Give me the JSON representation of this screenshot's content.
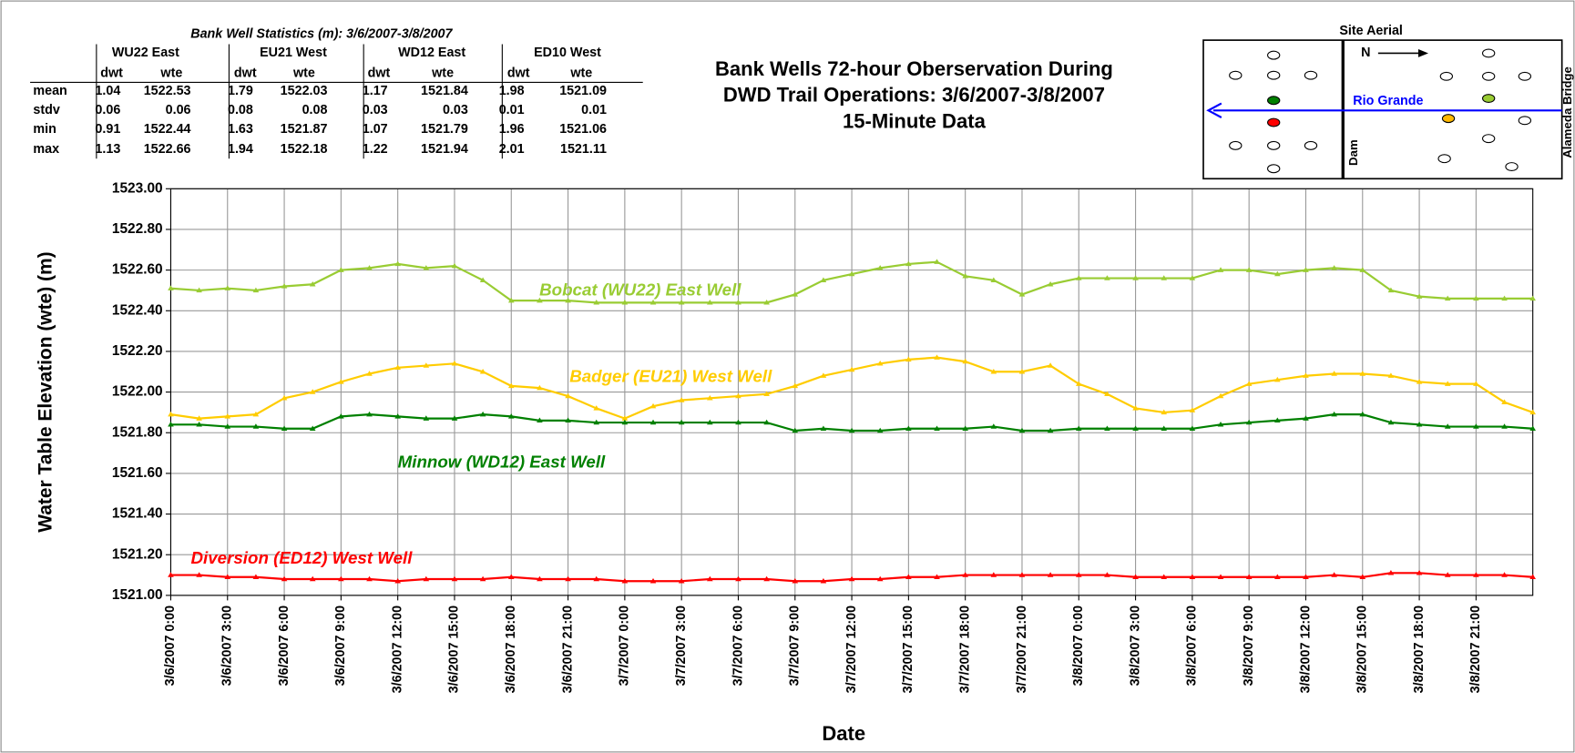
{
  "stats_table": {
    "title": "Bank Well Statistics (m): 3/6/2007-3/8/2007",
    "groups": [
      "WU22 East",
      "EU21 West",
      "WD12 East",
      "ED10 West"
    ],
    "subheaders": [
      "dwt",
      "wte"
    ],
    "rows": [
      {
        "label": "mean",
        "values": [
          1.04,
          1522.53,
          1.79,
          1522.03,
          1.17,
          1521.84,
          1.98,
          1521.09
        ]
      },
      {
        "label": "stdv",
        "values": [
          0.06,
          0.06,
          0.08,
          0.08,
          0.03,
          0.03,
          0.01,
          0.01
        ]
      },
      {
        "label": "min",
        "values": [
          0.91,
          1522.44,
          1.63,
          1521.87,
          1.07,
          1521.79,
          1.96,
          1521.06
        ]
      },
      {
        "label": "max",
        "values": [
          1.13,
          1522.66,
          1.94,
          1522.18,
          1.22,
          1521.94,
          2.01,
          1521.11
        ]
      }
    ]
  },
  "site_aerial": {
    "title": "Site Aerial",
    "north": "N",
    "river": "Rio Grande",
    "dam": "Dam",
    "bridge": "Alameda Bridge"
  },
  "chart_data": {
    "type": "line",
    "title_lines": [
      "Bank Wells 72-hour Oberservation During",
      "DWD Trail Operations: 3/6/2007-3/8/2007",
      "15-Minute Data"
    ],
    "xlabel": "Date",
    "ylabel": "Water Table Elevation (wte) (m)",
    "categories": [
      "3/6/2007 0:00",
      null,
      "3/6/2007 3:00",
      null,
      "3/6/2007 6:00",
      null,
      "3/6/2007 9:00",
      null,
      "3/6/2007 12:00",
      null,
      "3/6/2007 15:00",
      null,
      "3/6/2007 18:00",
      null,
      "3/6/2007 21:00",
      null,
      "3/7/2007 0:00",
      null,
      "3/7/2007 3:00",
      null,
      "3/7/2007 6:00",
      null,
      "3/7/2007 9:00",
      null,
      "3/7/2007 12:00",
      null,
      "3/7/2007 15:00",
      null,
      "3/7/2007 18:00",
      null,
      "3/7/2007 21:00",
      null,
      "3/8/2007 0:00",
      null,
      "3/8/2007 3:00",
      null,
      "3/8/2007 6:00",
      null,
      "3/8/2007 9:00",
      null,
      "3/8/2007 12:00",
      null,
      "3/8/2007 15:00",
      null,
      "3/8/2007 18:00",
      null,
      "3/8/2007 21:00",
      null,
      null
    ],
    "series": [
      {
        "name": "Bobcat (WU22) East Well",
        "color": "#99cc33",
        "values": [
          1522.51,
          1522.5,
          1522.51,
          1522.5,
          1522.52,
          1522.53,
          1522.6,
          1522.61,
          1522.63,
          1522.61,
          1522.62,
          1522.55,
          1522.45,
          1522.45,
          1522.45,
          1522.44,
          1522.44,
          1522.44,
          1522.44,
          1522.44,
          1522.44,
          1522.44,
          1522.48,
          1522.55,
          1522.58,
          1522.61,
          1522.63,
          1522.64,
          1522.57,
          1522.55,
          1522.48,
          1522.53,
          1522.56,
          1522.56,
          1522.56,
          1522.56,
          1522.56,
          1522.6,
          1522.6,
          1522.58,
          1522.6,
          1522.61,
          1522.6,
          1522.5,
          1522.47,
          1522.46,
          1522.46,
          1522.46,
          1522.46
        ]
      },
      {
        "name": "Badger (EU21) West Well",
        "color": "#ffcc00",
        "values": [
          1521.89,
          1521.87,
          1521.88,
          1521.89,
          1521.97,
          1522.0,
          1522.05,
          1522.09,
          1522.12,
          1522.13,
          1522.14,
          1522.1,
          1522.03,
          1522.02,
          1521.98,
          1521.92,
          1521.87,
          1521.93,
          1521.96,
          1521.97,
          1521.98,
          1521.99,
          1522.03,
          1522.08,
          1522.11,
          1522.14,
          1522.16,
          1522.17,
          1522.15,
          1522.1,
          1522.1,
          1522.13,
          1522.04,
          1521.99,
          1521.92,
          1521.9,
          1521.91,
          1521.98,
          1522.04,
          1522.06,
          1522.08,
          1522.09,
          1522.09,
          1522.08,
          1522.05,
          1522.04,
          1522.04,
          1521.95,
          1521.9
        ]
      },
      {
        "name": "Minnow (WD12) East Well",
        "color": "#008000",
        "values": [
          1521.84,
          1521.84,
          1521.83,
          1521.83,
          1521.82,
          1521.82,
          1521.88,
          1521.89,
          1521.88,
          1521.87,
          1521.87,
          1521.89,
          1521.88,
          1521.86,
          1521.86,
          1521.85,
          1521.85,
          1521.85,
          1521.85,
          1521.85,
          1521.85,
          1521.85,
          1521.81,
          1521.82,
          1521.81,
          1521.81,
          1521.82,
          1521.82,
          1521.82,
          1521.83,
          1521.81,
          1521.81,
          1521.82,
          1521.82,
          1521.82,
          1521.82,
          1521.82,
          1521.84,
          1521.85,
          1521.86,
          1521.87,
          1521.89,
          1521.89,
          1521.85,
          1521.84,
          1521.83,
          1521.83,
          1521.83,
          1521.82
        ]
      },
      {
        "name": "Diversion (ED12) West Well",
        "color": "#ff0000",
        "values": [
          1521.1,
          1521.1,
          1521.09,
          1521.09,
          1521.08,
          1521.08,
          1521.08,
          1521.08,
          1521.07,
          1521.08,
          1521.08,
          1521.08,
          1521.09,
          1521.08,
          1521.08,
          1521.08,
          1521.07,
          1521.07,
          1521.07,
          1521.08,
          1521.08,
          1521.08,
          1521.07,
          1521.07,
          1521.08,
          1521.08,
          1521.09,
          1521.09,
          1521.1,
          1521.1,
          1521.1,
          1521.1,
          1521.1,
          1521.1,
          1521.09,
          1521.09,
          1521.09,
          1521.09,
          1521.09,
          1521.09,
          1521.09,
          1521.1,
          1521.09,
          1521.11,
          1521.11,
          1521.1,
          1521.1,
          1521.1,
          1521.09
        ]
      }
    ],
    "ylim": [
      1521.0,
      1523.0
    ],
    "yticks": [
      {
        "value": 1521.0,
        "label": "1521.00"
      },
      {
        "value": 1521.2,
        "label": "1521.20"
      },
      {
        "value": 1521.4,
        "label": "1521.40"
      },
      {
        "value": 1521.6,
        "label": "1521.60"
      },
      {
        "value": 1521.8,
        "label": "1521.80"
      },
      {
        "value": 1522.0,
        "label": "1522.00"
      },
      {
        "value": 1522.2,
        "label": "1522.20"
      },
      {
        "value": 1522.4,
        "label": "1522.40"
      },
      {
        "value": 1522.6,
        "label": "1522.60"
      },
      {
        "value": 1522.8,
        "label": "1522.80"
      },
      {
        "value": 1523.0,
        "label": "1523.00"
      }
    ],
    "grid": true
  }
}
